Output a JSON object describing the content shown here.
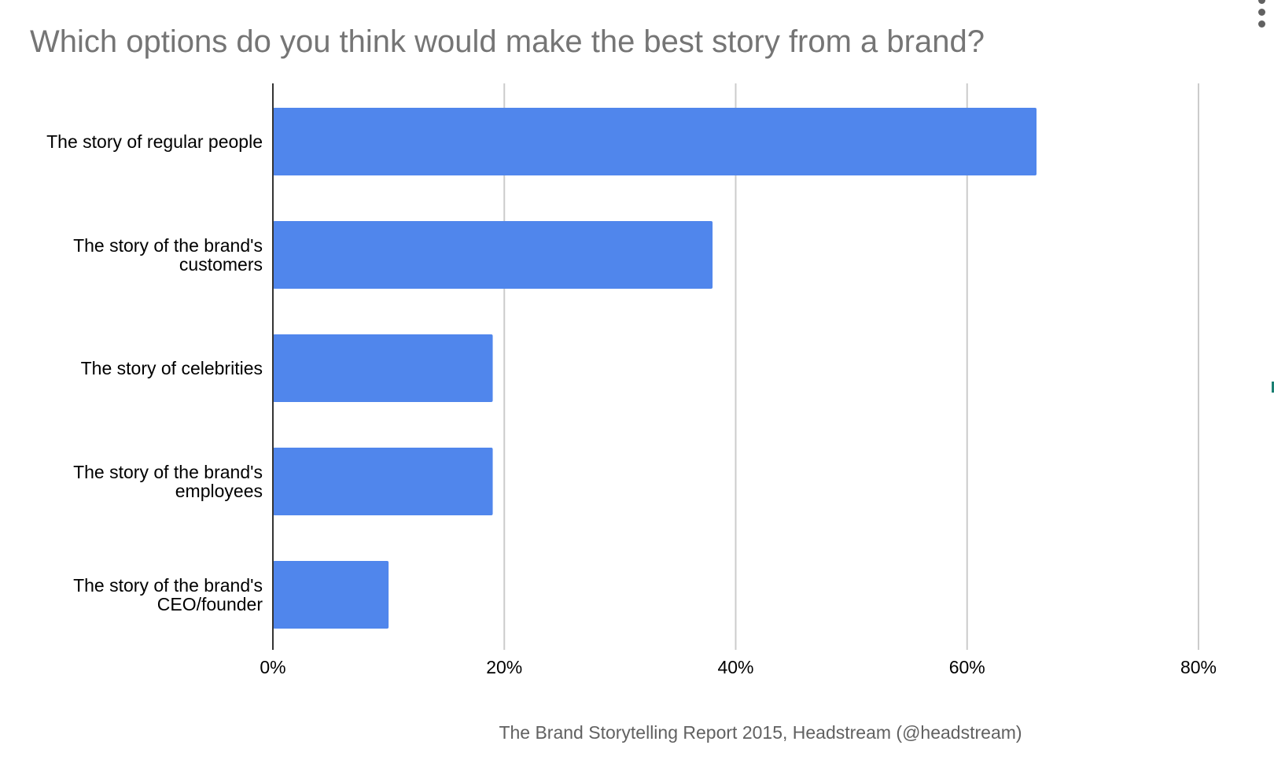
{
  "menu": {
    "icon": "more-vert-icon"
  },
  "colors": {
    "bar": "#5086ec",
    "title": "#757575",
    "grid": "#cccccc",
    "axis_title": "#616161"
  },
  "chart_data": {
    "type": "bar",
    "orientation": "horizontal",
    "title": "Which options do you think would make the best story from a brand?",
    "xlabel": "The Brand Storytelling Report 2015, Headstream (@headstream)",
    "ylabel": "",
    "categories": [
      [
        "The story of regular people"
      ],
      [
        "The story of the brand's",
        "customers"
      ],
      [
        "The story of celebrities"
      ],
      [
        "The story of the brand's",
        "employees"
      ],
      [
        "The story of the brand's",
        "CEO/founder"
      ]
    ],
    "values": [
      66,
      38,
      19,
      19,
      10
    ],
    "unit": "%",
    "xlim": [
      0,
      80
    ],
    "xticks": [
      "0%",
      "20%",
      "40%",
      "60%",
      "80%"
    ],
    "grid": true,
    "legend": "none"
  }
}
